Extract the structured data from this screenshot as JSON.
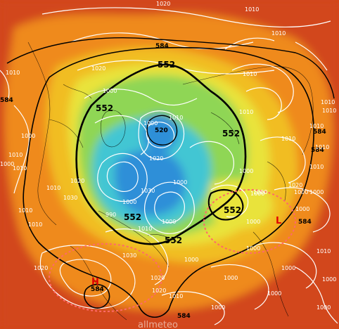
{
  "map": {
    "type": "northern hemisphere 500 hPa geopotential and sea-level pressure chart",
    "colors": {
      "warm_outer": "#d2461a",
      "orange": "#ef8a1e",
      "yellow_orange": "#f1bd22",
      "yellow": "#e9e33a",
      "green": "#8fd654",
      "cyan": "#42c6d3",
      "blue": "#2f8fd8",
      "isobar": "#ffffff",
      "geopotential": "#000000",
      "highlight_ellipse": "#ff6a6a"
    },
    "geopotential_labels": [
      {
        "id": "h584-top",
        "text": "584"
      },
      {
        "id": "h552-top",
        "text": "552"
      },
      {
        "id": "h552-left",
        "text": "552"
      },
      {
        "id": "h552-right",
        "text": "552"
      },
      {
        "id": "h520",
        "text": "520"
      },
      {
        "id": "h552-bot",
        "text": "552"
      },
      {
        "id": "h552-bot2",
        "text": "552"
      },
      {
        "id": "h552-rb",
        "text": "552"
      },
      {
        "id": "h584-ll",
        "text": "584"
      },
      {
        "id": "h584-r",
        "text": "584"
      },
      {
        "id": "h584-b",
        "text": "584"
      },
      {
        "id": "h584-rr",
        "text": "584"
      },
      {
        "id": "h584-l",
        "text": "584"
      },
      {
        "id": "h584-ll2",
        "text": "584"
      }
    ],
    "isobar_labels": [
      {
        "id": "i1",
        "text": "1020"
      },
      {
        "id": "i2",
        "text": "1010"
      },
      {
        "id": "i3",
        "text": "1010"
      },
      {
        "id": "i4",
        "text": "1020"
      },
      {
        "id": "i5",
        "text": "1010"
      },
      {
        "id": "i6",
        "text": "1000"
      },
      {
        "id": "i7",
        "text": "1010"
      },
      {
        "id": "i8",
        "text": "1010"
      },
      {
        "id": "i9",
        "text": "1010"
      },
      {
        "id": "i10",
        "text": "1000"
      },
      {
        "id": "i11",
        "text": "1010"
      },
      {
        "id": "i12",
        "text": "1010"
      },
      {
        "id": "i13",
        "text": "1000"
      },
      {
        "id": "i14",
        "text": "1010"
      },
      {
        "id": "i15",
        "text": "1010"
      },
      {
        "id": "i16",
        "text": "1010"
      },
      {
        "id": "i17",
        "text": "1020"
      },
      {
        "id": "i18",
        "text": "1000"
      },
      {
        "id": "i19",
        "text": "1010"
      },
      {
        "id": "i20",
        "text": "1000"
      },
      {
        "id": "i21",
        "text": "1020"
      },
      {
        "id": "i22",
        "text": "1010"
      },
      {
        "id": "i23",
        "text": "1000"
      },
      {
        "id": "i24",
        "text": "1030"
      },
      {
        "id": "i25",
        "text": "990"
      },
      {
        "id": "i26",
        "text": "1000"
      },
      {
        "id": "i27",
        "text": "1000"
      },
      {
        "id": "i28",
        "text": "1010"
      },
      {
        "id": "i29",
        "text": "1020"
      },
      {
        "id": "i30",
        "text": "1030"
      },
      {
        "id": "i31",
        "text": "1000"
      },
      {
        "id": "i32",
        "text": "1010"
      },
      {
        "id": "i33",
        "text": "1000"
      },
      {
        "id": "i34",
        "text": "1000"
      },
      {
        "id": "i35",
        "text": "1010"
      },
      {
        "id": "i36",
        "text": "1000"
      },
      {
        "id": "i37",
        "text": "1000"
      },
      {
        "id": "i38",
        "text": "1010"
      },
      {
        "id": "i39",
        "text": "1000"
      },
      {
        "id": "i40",
        "text": "1030"
      },
      {
        "id": "i41",
        "text": "1020"
      },
      {
        "id": "i42",
        "text": "1000"
      },
      {
        "id": "i43",
        "text": "1010"
      },
      {
        "id": "i44",
        "text": "1020"
      },
      {
        "id": "i45",
        "text": "1000"
      },
      {
        "id": "i46",
        "text": "1000"
      },
      {
        "id": "i47",
        "text": "1000"
      },
      {
        "id": "i48",
        "text": "1010"
      },
      {
        "id": "i49",
        "text": "1000"
      },
      {
        "id": "i50",
        "text": "1000"
      },
      {
        "id": "i51",
        "text": "1000"
      },
      {
        "id": "i52",
        "text": "1010"
      },
      {
        "id": "i53",
        "text": "1000"
      },
      {
        "id": "i54",
        "text": "1020"
      }
    ],
    "pressure_centers": [
      {
        "id": "high",
        "text": "H"
      },
      {
        "id": "low",
        "text": "L"
      }
    ],
    "watermark": "allmeteo"
  }
}
